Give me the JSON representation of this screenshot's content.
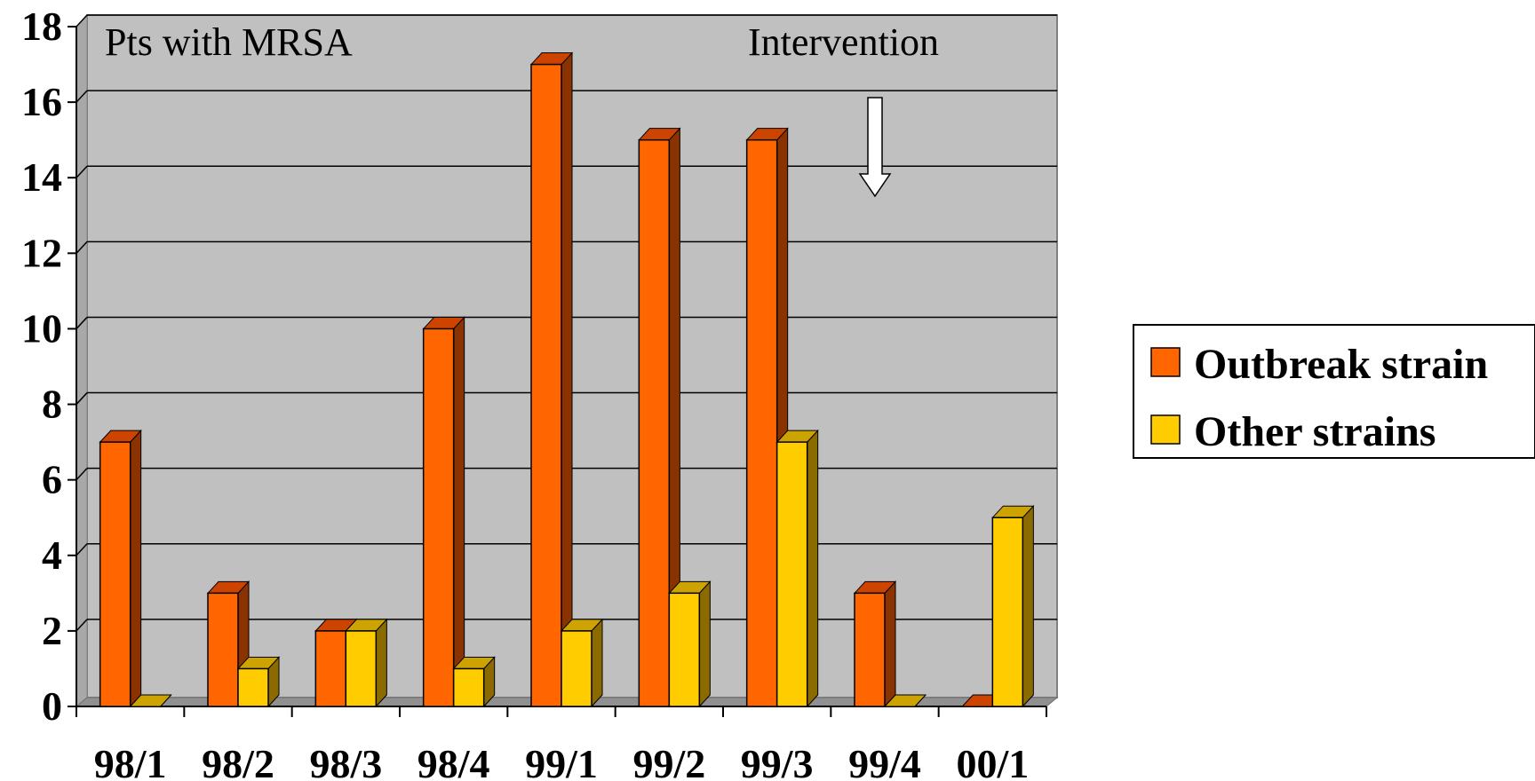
{
  "chart_data": {
    "type": "bar",
    "style": "3d-clustered",
    "categories": [
      "98/1",
      "98/2",
      "98/3",
      "98/4",
      "99/1",
      "99/2",
      "99/3",
      "99/4",
      "00/1"
    ],
    "series": [
      {
        "name": "Outbreak strain",
        "values": [
          7,
          3,
          2,
          10,
          17,
          15,
          15,
          3,
          0
        ],
        "color": "#FF6600",
        "side_color": "#8B3300",
        "top_color": "#CC4400"
      },
      {
        "name": "Other strains",
        "values": [
          0,
          1,
          2,
          1,
          2,
          3,
          7,
          0,
          5
        ],
        "color": "#FFCC00",
        "side_color": "#8B6B00",
        "top_color": "#CCA300"
      }
    ],
    "ylim": [
      0,
      18
    ],
    "yticks": [
      "0",
      "2",
      "4",
      "6",
      "8",
      "10",
      "12",
      "14",
      "16",
      "18"
    ],
    "annotations": {
      "top_left": "Pts with MRSA",
      "intervention": "Intervention"
    },
    "grid": true,
    "legend_position": "right",
    "plot_background": "#C0C0C0"
  }
}
